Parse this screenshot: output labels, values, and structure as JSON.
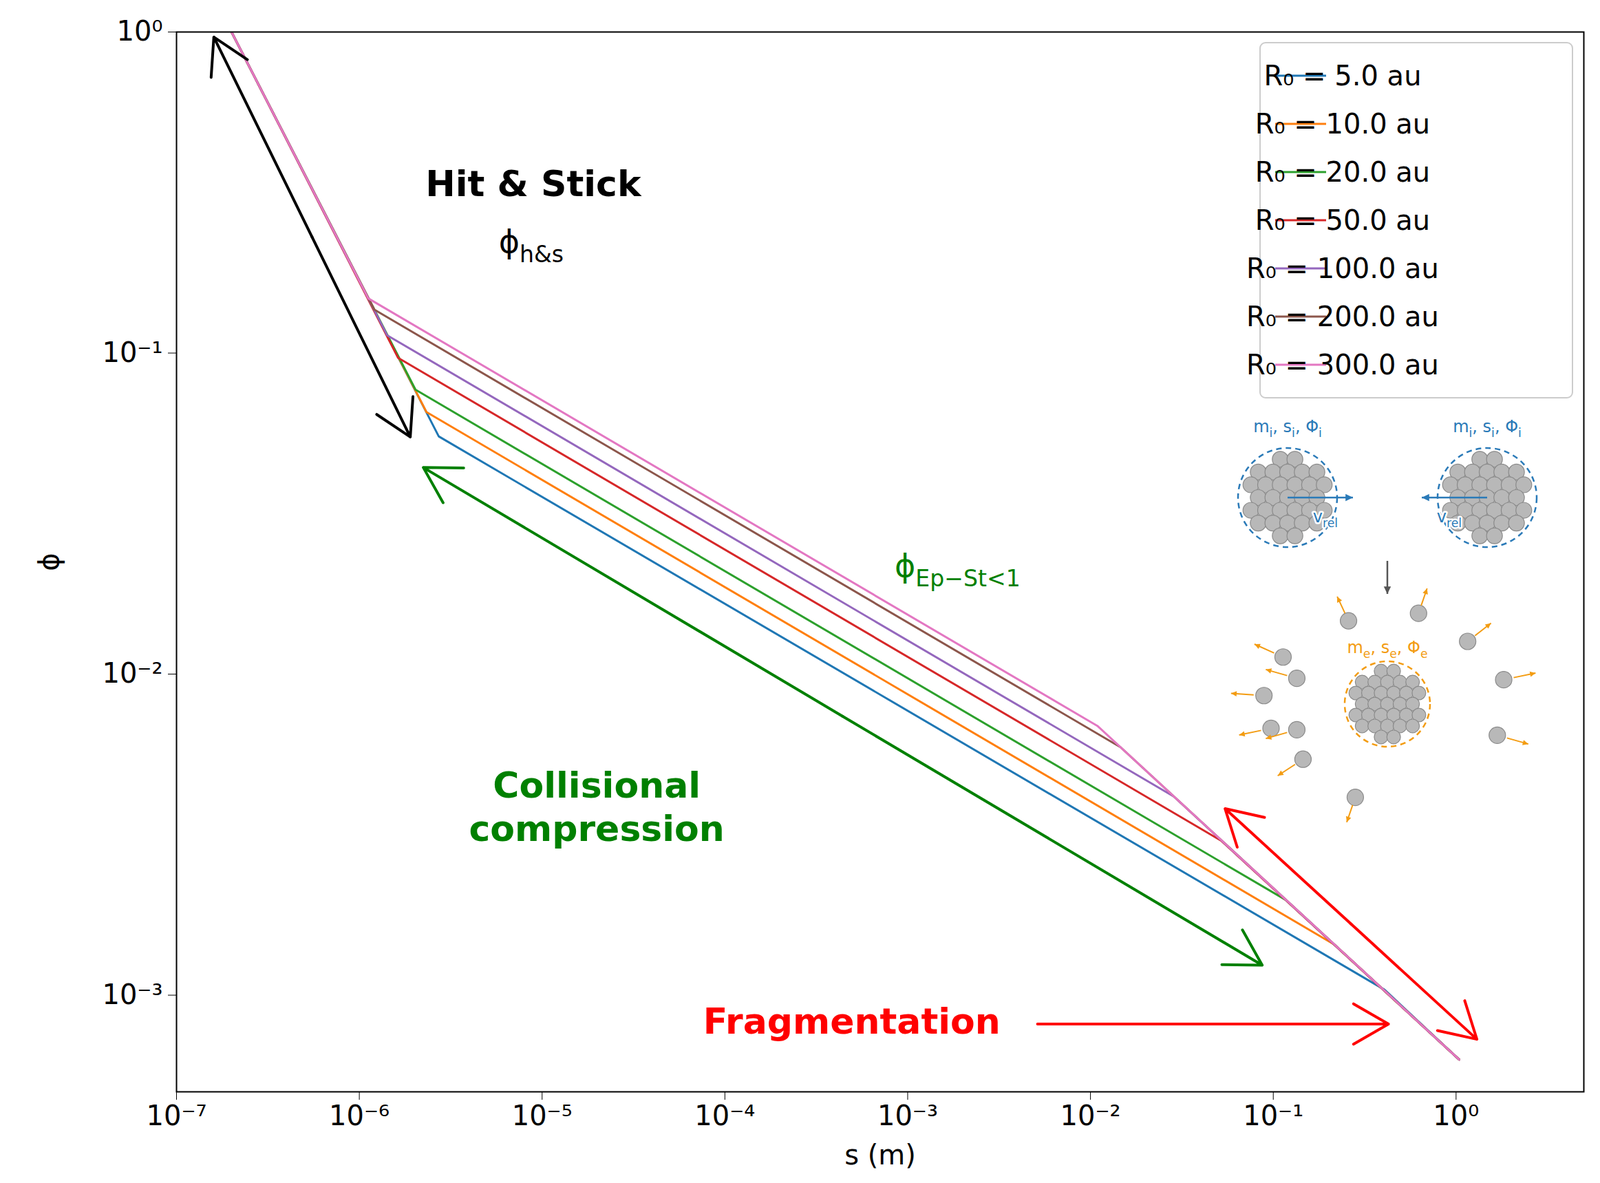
{
  "chart_data": {
    "type": "line",
    "log": true,
    "grid": false,
    "legend": "top-right",
    "x_label": "s (m)",
    "y_label": "ϕ",
    "xlim": [
      1e-07,
      5
    ],
    "ylim": [
      0.0005,
      1
    ],
    "xticks": [
      {
        "value": 1e-07,
        "label": "10⁻⁷"
      },
      {
        "value": 1e-06,
        "label": "10⁻⁶"
      },
      {
        "value": 1e-05,
        "label": "10⁻⁵"
      },
      {
        "value": 0.0001,
        "label": "10⁻⁴"
      },
      {
        "value": 0.001,
        "label": "10⁻³"
      },
      {
        "value": 0.01,
        "label": "10⁻²"
      },
      {
        "value": 0.1,
        "label": "10⁻¹"
      },
      {
        "value": 1,
        "label": "10⁰"
      }
    ],
    "yticks": [
      {
        "value": 0.001,
        "label": "10⁻³"
      },
      {
        "value": 0.01,
        "label": "10⁻²"
      },
      {
        "value": 0.1,
        "label": "10⁻¹"
      },
      {
        "value": 1,
        "label": "10⁰"
      }
    ],
    "series": [
      {
        "name": "R₀ = 5.0 au",
        "color": "#1f77b4",
        "x": [
          2e-07,
          2.72e-06,
          0.406,
          1.04
        ],
        "values": [
          1.0,
          0.055,
          0.00104,
          0.00063
        ]
      },
      {
        "name": "R₀ = 10.0 au",
        "color": "#ff7f0e",
        "x": [
          2e-07,
          2.33e-06,
          0.215,
          1.04
        ],
        "values": [
          1.0,
          0.0655,
          0.00144,
          0.00063
        ]
      },
      {
        "name": "R₀ = 20.0 au",
        "color": "#2ca02c",
        "x": [
          2e-07,
          2.03e-06,
          0.117,
          1.04
        ],
        "values": [
          1.0,
          0.0769,
          0.00198,
          0.00063
        ]
      },
      {
        "name": "R₀ = 50.0 au",
        "color": "#d62728",
        "x": [
          2e-07,
          1.63e-06,
          0.0518,
          1.04
        ],
        "values": [
          1.0,
          0.0966,
          0.00303,
          0.00063
        ]
      },
      {
        "name": "R₀ = 100.0 au",
        "color": "#9467bd",
        "x": [
          2e-07,
          1.42e-06,
          0.0285,
          1.04
        ],
        "values": [
          1.0,
          0.1136,
          0.00416,
          0.00063
        ]
      },
      {
        "name": "R₀ = 200.0 au",
        "color": "#8c564b",
        "x": [
          2e-07,
          1.21e-06,
          0.0146,
          1.04
        ],
        "values": [
          1.0,
          0.1365,
          0.00592,
          0.00063
        ]
      },
      {
        "name": "R₀ = 300.0 au",
        "color": "#e377c2",
        "x": [
          2e-07,
          1.12e-06,
          0.0109,
          1.04
        ],
        "values": [
          1.0,
          0.148,
          0.0069,
          0.00063
        ]
      }
    ],
    "annotations": [
      {
        "parts": [
          {
            "text": "Hit & Stick"
          }
        ],
        "color": "#000000"
      },
      {
        "parts": [
          {
            "text": "ϕ",
            "subscript": "h&s"
          }
        ],
        "color": "#000000"
      },
      {
        "parts": [
          {
            "text": "ϕ",
            "subscript": "Ep−St<1"
          }
        ],
        "color": "#008000"
      },
      {
        "parts": [
          {
            "text": "Collisional"
          }
        ],
        "color": "#008000"
      },
      {
        "parts": [
          {
            "text": "compression"
          }
        ],
        "color": "#008000"
      },
      {
        "parts": [
          {
            "text": "Fragmentation"
          }
        ],
        "color": "#ff0000"
      }
    ],
    "inset_labels": {
      "incoming": [
        {
          "text": "m",
          "subscript": "i"
        },
        {
          "text": ", s",
          "subscript": "i"
        },
        {
          "text": ", Φ",
          "subscript": "i"
        }
      ],
      "velocity": [
        {
          "text": "v",
          "subscript": "rel"
        }
      ],
      "ejected": [
        {
          "text": "m",
          "subscript": "e"
        },
        {
          "text": ", s",
          "subscript": "e"
        },
        {
          "text": ", Φ",
          "subscript": "e"
        }
      ]
    }
  }
}
